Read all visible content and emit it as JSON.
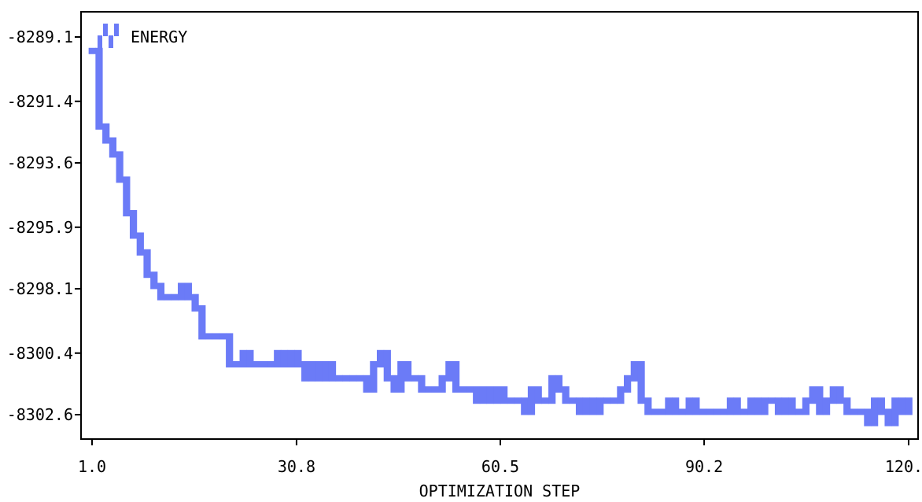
{
  "chart_data": {
    "type": "line",
    "title": "",
    "xlabel": "OPTIMIZATION STEP",
    "ylabel": "",
    "xlim": [
      1.0,
      120.0
    ],
    "ylim": [
      -8303.0,
      -8288.5
    ],
    "x_ticks": [
      1.0,
      30.8,
      60.5,
      90.2,
      120.0
    ],
    "x_tick_labels": [
      "1.0",
      "30.8",
      "60.5",
      "90.2",
      "120.0"
    ],
    "y_ticks": [
      -8289.1,
      -8291.4,
      -8293.6,
      -8295.9,
      -8298.1,
      -8300.4,
      -8302.6
    ],
    "y_tick_labels": [
      "-8289.1",
      "-8291.4",
      "-8293.6",
      "-8295.9",
      "-8298.1",
      "-8300.4",
      "-8302.6"
    ],
    "grid": false,
    "legend_position": "top-left",
    "series": [
      {
        "name": "ENERGY",
        "color": "#6b7bf7",
        "x": [
          1,
          2,
          3,
          4,
          5,
          6,
          7,
          8,
          9,
          10,
          11,
          12,
          13,
          14,
          15,
          16,
          17,
          18,
          19,
          20,
          21,
          22,
          23,
          24,
          25,
          26,
          27,
          28,
          29,
          30,
          31,
          32,
          33,
          34,
          35,
          36,
          37,
          38,
          39,
          40,
          41,
          42,
          43,
          44,
          45,
          46,
          47,
          48,
          49,
          50,
          51,
          52,
          53,
          54,
          55,
          56,
          57,
          58,
          59,
          60,
          61,
          62,
          63,
          64,
          65,
          66,
          67,
          68,
          69,
          70,
          71,
          72,
          73,
          74,
          75,
          76,
          77,
          78,
          79,
          80,
          81,
          82,
          83,
          84,
          85,
          86,
          87,
          88,
          89,
          90,
          91,
          92,
          93,
          94,
          95,
          96,
          97,
          98,
          99,
          100,
          101,
          102,
          103,
          104,
          105,
          106,
          107,
          108,
          109,
          110,
          111,
          112,
          113,
          114,
          115,
          116,
          117,
          118,
          119,
          120
        ],
        "values": [
          -8289.6,
          -8292.3,
          -8292.8,
          -8293.3,
          -8294.2,
          -8295.4,
          -8296.2,
          -8296.8,
          -8297.6,
          -8298.0,
          -8298.4,
          -8298.4,
          -8298.4,
          -8298.0,
          -8298.4,
          -8298.8,
          -8299.8,
          -8299.8,
          -8299.8,
          -8299.8,
          -8300.8,
          -8300.8,
          -8300.4,
          -8300.8,
          -8300.8,
          -8300.8,
          -8300.8,
          -8300.4,
          -8300.8,
          -8300.4,
          -8300.8,
          -8301.3,
          -8300.8,
          -8301.3,
          -8300.8,
          -8301.3,
          -8301.3,
          -8301.3,
          -8301.3,
          -8301.3,
          -8301.7,
          -8300.8,
          -8300.4,
          -8301.3,
          -8301.7,
          -8300.8,
          -8301.3,
          -8301.3,
          -8301.7,
          -8301.7,
          -8301.7,
          -8301.3,
          -8300.8,
          -8301.7,
          -8301.7,
          -8301.7,
          -8302.1,
          -8301.7,
          -8302.1,
          -8301.7,
          -8302.1,
          -8302.1,
          -8302.1,
          -8302.5,
          -8301.7,
          -8302.1,
          -8302.1,
          -8301.3,
          -8301.7,
          -8302.1,
          -8302.1,
          -8302.5,
          -8302.1,
          -8302.5,
          -8302.1,
          -8302.1,
          -8302.1,
          -8301.7,
          -8301.3,
          -8300.8,
          -8302.1,
          -8302.5,
          -8302.5,
          -8302.5,
          -8302.1,
          -8302.5,
          -8302.5,
          -8302.1,
          -8302.5,
          -8302.5,
          -8302.5,
          -8302.5,
          -8302.5,
          -8302.1,
          -8302.5,
          -8302.5,
          -8302.1,
          -8302.5,
          -8302.1,
          -8302.1,
          -8302.5,
          -8302.1,
          -8302.5,
          -8302.5,
          -8302.1,
          -8301.7,
          -8302.5,
          -8302.1,
          -8301.7,
          -8302.1,
          -8302.5,
          -8302.5,
          -8302.5,
          -8302.9,
          -8302.1,
          -8302.5,
          -8302.9,
          -8302.1,
          -8302.5,
          -8302.1
        ]
      }
    ]
  }
}
